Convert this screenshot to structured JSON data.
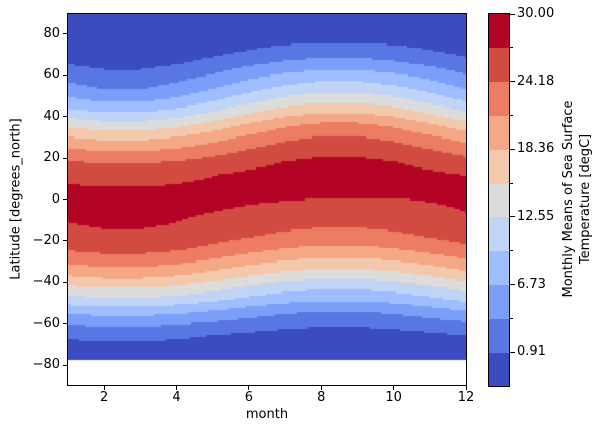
{
  "figure": {
    "background": "#ffffff"
  },
  "axes": {
    "xlabel": "month",
    "ylabel": "Latitude [degrees_north]",
    "xlim": [
      1,
      12
    ],
    "ylim": [
      -89.5,
      89.5
    ],
    "x_tick_values": [
      2,
      4,
      6,
      8,
      10,
      12
    ],
    "x_tick_labels": [
      "2",
      "4",
      "6",
      "8",
      "10",
      "12"
    ],
    "y_tick_values": [
      -80,
      -60,
      -40,
      -20,
      0,
      20,
      40,
      60,
      80
    ],
    "y_tick_labels": [
      "−80",
      "−60",
      "−40",
      "−20",
      "0",
      "20",
      "40",
      "60",
      "80"
    ]
  },
  "colorbar": {
    "label_line1": "Monthly Means of Sea Surface",
    "label_line2": "Temperature [degC]",
    "range": [
      -2.0,
      30.0
    ],
    "tick_values": [
      30.0,
      24.18,
      18.36,
      12.55,
      6.73,
      0.91
    ],
    "tick_labels": [
      "30.00",
      "24.18",
      "18.36",
      "12.55",
      "6.73",
      "0.91"
    ],
    "minor_tick_values": [
      27.09,
      21.27,
      15.46,
      9.64,
      3.82
    ]
  },
  "chart_data": {
    "type": "filled_contour",
    "title": "",
    "xlabel": "month",
    "ylabel": "Latitude [degrees_north]",
    "colorbar_label": "Monthly Means of Sea Surface Temperature [degC]",
    "colormap": "coolwarm",
    "levels_degC": [
      -2.0,
      0.91,
      3.82,
      6.73,
      9.64,
      12.55,
      15.46,
      18.36,
      21.27,
      24.18,
      27.09,
      30.0
    ],
    "band_colors": [
      "#3b4cc0",
      "#5977e3",
      "#7b9ff9",
      "#9ebeff",
      "#c0d4f5",
      "#dddcdc",
      "#f2c9ad",
      "#f5a886",
      "#ec7d62",
      "#d24b40",
      "#b40426"
    ],
    "masked_color": "#ffffff",
    "masked_below_latitude": -77.5,
    "x_months": [
      1,
      2,
      3,
      4,
      5,
      6,
      7,
      8,
      9,
      10,
      11,
      12
    ],
    "y_latitudes": [
      89.5,
      84,
      78,
      72,
      66,
      60,
      54,
      48,
      42,
      36,
      30,
      24,
      18,
      12,
      6,
      0,
      -6,
      -12,
      -18,
      -24,
      -30,
      -36,
      -42,
      -48,
      -54,
      -60,
      -66,
      -72,
      -77.5
    ],
    "values_degC": [
      [
        -1.8,
        -1.8,
        -1.8,
        -1.8,
        -1.7,
        -1.5,
        -1.4,
        -1.3,
        -1.3,
        -1.4,
        -1.5,
        -1.7
      ],
      [
        -1.8,
        -1.8,
        -1.8,
        -1.8,
        -1.5,
        -1.3,
        -1.0,
        -0.9,
        -0.9,
        -1.0,
        -1.3,
        -1.5
      ],
      [
        -1.5,
        -1.8,
        -1.8,
        -1.5,
        -1.1,
        -0.5,
        -0.1,
        0.2,
        0.2,
        -0.1,
        -0.5,
        -1.1
      ],
      [
        -0.8,
        -1.2,
        -1.2,
        -0.8,
        0.0,
        1.0,
        1.8,
        2.2,
        2.2,
        1.8,
        1.0,
        0.0
      ],
      [
        0.7,
        0.0,
        0.0,
        0.7,
        1.8,
        3.2,
        4.3,
        5.0,
        5.0,
        4.3,
        3.2,
        1.8
      ],
      [
        2.7,
        1.8,
        1.8,
        2.7,
        4.1,
        5.9,
        7.3,
        8.2,
        8.2,
        7.3,
        5.9,
        4.1
      ],
      [
        4.7,
        3.6,
        3.6,
        4.7,
        6.5,
        8.5,
        10.3,
        11.4,
        11.4,
        10.3,
        8.5,
        6.5
      ],
      [
        7.4,
        6.3,
        6.3,
        7.4,
        9.4,
        11.6,
        13.6,
        14.8,
        14.8,
        13.6,
        11.6,
        9.4
      ],
      [
        10.8,
        9.7,
        9.7,
        10.8,
        12.8,
        15.2,
        17.2,
        18.3,
        18.3,
        17.2,
        15.2,
        12.8
      ],
      [
        14.8,
        13.7,
        13.7,
        14.8,
        16.7,
        18.9,
        20.8,
        21.9,
        21.9,
        20.8,
        18.9,
        16.7
      ],
      [
        18.5,
        17.6,
        17.6,
        18.5,
        20.1,
        21.9,
        23.5,
        24.4,
        24.4,
        23.5,
        21.9,
        20.1
      ],
      [
        21.6,
        20.9,
        20.9,
        21.6,
        22.9,
        24.3,
        25.6,
        26.3,
        26.3,
        25.6,
        24.3,
        22.9
      ],
      [
        24.4,
        23.9,
        23.9,
        24.4,
        25.3,
        26.3,
        27.2,
        27.7,
        27.7,
        27.2,
        26.3,
        25.3
      ],
      [
        26.5,
        26.1,
        26.1,
        26.5,
        27.0,
        27.6,
        28.1,
        28.5,
        28.5,
        28.1,
        27.6,
        27.0
      ],
      [
        27.3,
        27.1,
        27.1,
        27.3,
        27.6,
        28.0,
        28.3,
        28.5,
        28.5,
        28.3,
        28.0,
        27.6
      ],
      [
        27.7,
        27.8,
        27.9,
        27.8,
        27.7,
        27.4,
        27.2,
        27.0,
        26.9,
        27.0,
        27.2,
        27.4
      ],
      [
        27.5,
        27.8,
        27.8,
        27.5,
        27.1,
        26.7,
        26.3,
        26.0,
        26.0,
        26.3,
        26.7,
        27.1
      ],
      [
        27.0,
        27.4,
        27.4,
        27.0,
        26.4,
        25.6,
        25.0,
        24.6,
        24.6,
        25.0,
        25.6,
        26.4
      ],
      [
        26.1,
        26.6,
        26.6,
        26.1,
        25.3,
        24.3,
        23.5,
        23.0,
        23.0,
        23.5,
        24.3,
        25.3
      ],
      [
        24.5,
        25.1,
        25.1,
        24.5,
        23.4,
        22.2,
        21.1,
        20.5,
        20.5,
        21.1,
        22.2,
        23.4
      ],
      [
        21.9,
        22.6,
        22.6,
        21.9,
        20.7,
        19.3,
        18.1,
        17.4,
        17.4,
        18.1,
        19.3,
        20.7
      ],
      [
        18.9,
        19.6,
        19.6,
        18.9,
        17.6,
        16.0,
        14.7,
        14.0,
        14.0,
        14.7,
        16.0,
        17.6
      ],
      [
        15.3,
        16.0,
        16.0,
        15.3,
        14.0,
        12.4,
        11.1,
        10.4,
        10.4,
        11.1,
        12.4,
        14.0
      ],
      [
        11.6,
        12.3,
        12.3,
        11.6,
        10.5,
        9.1,
        8.0,
        7.3,
        7.3,
        8.0,
        9.1,
        10.5
      ],
      [
        7.6,
        8.1,
        8.1,
        7.6,
        6.6,
        5.4,
        4.4,
        3.9,
        3.9,
        4.4,
        5.4,
        6.6
      ],
      [
        4.1,
        4.5,
        4.5,
        4.1,
        3.4,
        2.6,
        1.9,
        1.5,
        1.5,
        1.9,
        2.6,
        3.4
      ],
      [
        1.4,
        1.7,
        1.7,
        1.4,
        0.8,
        0.2,
        -0.3,
        -0.7,
        -0.7,
        -0.3,
        0.2,
        0.8
      ],
      [
        -0.3,
        -0.1,
        -0.1,
        -0.3,
        -0.6,
        -1.0,
        -1.3,
        -1.5,
        -1.5,
        -1.3,
        -1.0,
        -0.6
      ],
      [
        -1.4,
        -1.3,
        -1.3,
        -1.4,
        -1.7,
        -1.8,
        -1.8,
        -1.8,
        -1.8,
        -1.8,
        -1.8,
        -1.7
      ]
    ]
  }
}
